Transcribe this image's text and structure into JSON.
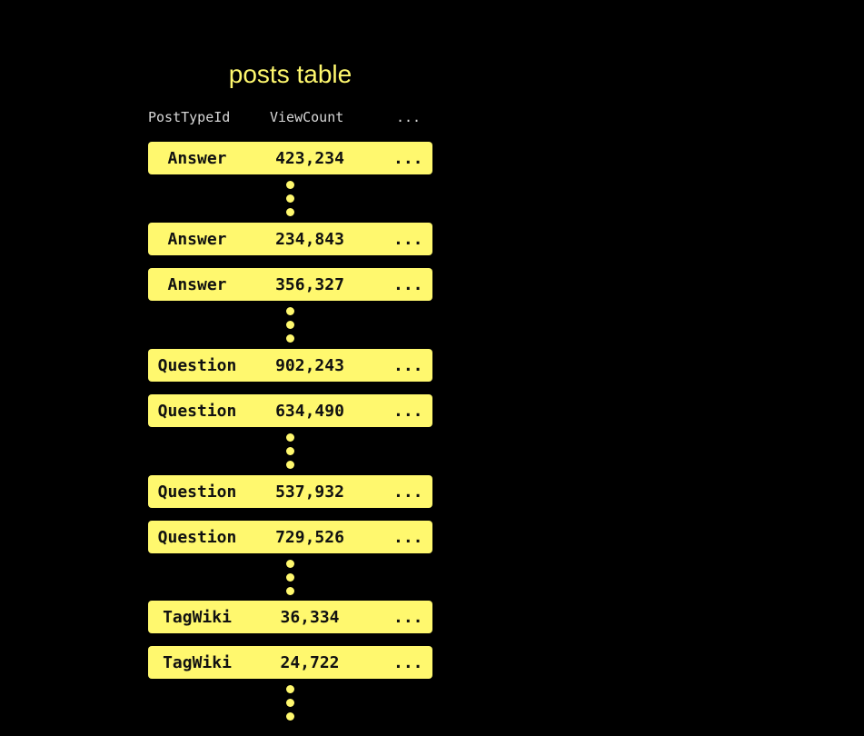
{
  "title": "posts table",
  "columns": [
    "PostTypeId",
    "ViewCount",
    "..."
  ],
  "rows": [
    {
      "type": "Answer",
      "views": "423,234",
      "more": "..."
    },
    {
      "type": "Answer",
      "views": "234,843",
      "more": "..."
    },
    {
      "type": "Answer",
      "views": "356,327",
      "more": "..."
    },
    {
      "type": "Question",
      "views": "902,243",
      "more": "..."
    },
    {
      "type": "Question",
      "views": "634,490",
      "more": "..."
    },
    {
      "type": "Question",
      "views": "537,932",
      "more": "..."
    },
    {
      "type": "Question",
      "views": "729,526",
      "more": "..."
    },
    {
      "type": "TagWiki",
      "views": "36,334",
      "more": "..."
    },
    {
      "type": "TagWiki",
      "views": "24,722",
      "more": "..."
    }
  ],
  "colors": {
    "accent": "#FFF86E",
    "background": "#000000",
    "header_text": "#d8d8d8"
  }
}
